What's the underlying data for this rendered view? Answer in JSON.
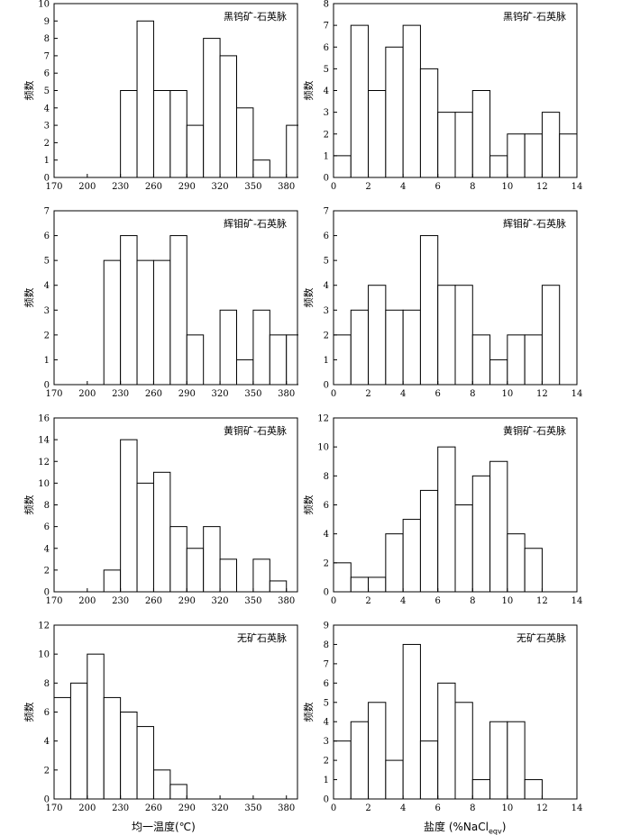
{
  "ylabel": "频数",
  "xlabel_left": "均一温度(℃)",
  "xlabel_right": "盐度 (%NaCl",
  "xlabel_right_sub": "eqv",
  "xlabel_right_close": ")",
  "chart_data": [
    {
      "type": "bar",
      "title": "黑钨矿-石英脉",
      "xlabel": "",
      "ylabel": "频数",
      "xlim": [
        170,
        390
      ],
      "ylim": [
        0,
        10
      ],
      "xticks": [
        170,
        200,
        230,
        260,
        290,
        320,
        350,
        380
      ],
      "yticks": [
        0,
        1,
        2,
        3,
        4,
        5,
        6,
        7,
        8,
        9,
        10
      ],
      "bins": [
        {
          "x0": 230,
          "x1": 245,
          "count": 5
        },
        {
          "x0": 245,
          "x1": 260,
          "count": 9
        },
        {
          "x0": 260,
          "x1": 275,
          "count": 5
        },
        {
          "x0": 275,
          "x1": 290,
          "count": 5
        },
        {
          "x0": 290,
          "x1": 305,
          "count": 3
        },
        {
          "x0": 305,
          "x1": 320,
          "count": 8
        },
        {
          "x0": 320,
          "x1": 335,
          "count": 7
        },
        {
          "x0": 335,
          "x1": 350,
          "count": 4
        },
        {
          "x0": 350,
          "x1": 365,
          "count": 1
        },
        {
          "x0": 365,
          "x1": 380,
          "count": 0
        },
        {
          "x0": 380,
          "x1": 395,
          "count": 3
        }
      ]
    },
    {
      "type": "bar",
      "title": "黑钨矿-石英脉",
      "xlabel": "",
      "ylabel": "频数",
      "xlim": [
        0,
        14
      ],
      "ylim": [
        0,
        8
      ],
      "xticks": [
        0,
        2,
        4,
        6,
        8,
        10,
        12,
        14
      ],
      "yticks": [
        0,
        1,
        2,
        3,
        4,
        5,
        6,
        7,
        8
      ],
      "bins": [
        {
          "x0": 0,
          "x1": 1,
          "count": 1
        },
        {
          "x0": 1,
          "x1": 2,
          "count": 7
        },
        {
          "x0": 2,
          "x1": 3,
          "count": 4
        },
        {
          "x0": 3,
          "x1": 4,
          "count": 6
        },
        {
          "x0": 4,
          "x1": 5,
          "count": 7
        },
        {
          "x0": 5,
          "x1": 6,
          "count": 5
        },
        {
          "x0": 6,
          "x1": 7,
          "count": 3
        },
        {
          "x0": 7,
          "x1": 8,
          "count": 3
        },
        {
          "x0": 8,
          "x1": 9,
          "count": 4
        },
        {
          "x0": 9,
          "x1": 10,
          "count": 1
        },
        {
          "x0": 10,
          "x1": 11,
          "count": 2
        },
        {
          "x0": 11,
          "x1": 12,
          "count": 2
        },
        {
          "x0": 12,
          "x1": 13,
          "count": 3
        },
        {
          "x0": 13,
          "x1": 14,
          "count": 2
        }
      ]
    },
    {
      "type": "bar",
      "title": "辉钼矿-石英脉",
      "xlabel": "",
      "ylabel": "频数",
      "xlim": [
        170,
        390
      ],
      "ylim": [
        0,
        7
      ],
      "xticks": [
        170,
        200,
        230,
        260,
        290,
        320,
        350,
        380
      ],
      "yticks": [
        0,
        1,
        2,
        3,
        4,
        5,
        6,
        7
      ],
      "bins": [
        {
          "x0": 215,
          "x1": 230,
          "count": 5
        },
        {
          "x0": 230,
          "x1": 245,
          "count": 6
        },
        {
          "x0": 245,
          "x1": 260,
          "count": 5
        },
        {
          "x0": 260,
          "x1": 275,
          "count": 5
        },
        {
          "x0": 275,
          "x1": 290,
          "count": 6
        },
        {
          "x0": 290,
          "x1": 305,
          "count": 2
        },
        {
          "x0": 305,
          "x1": 320,
          "count": 0
        },
        {
          "x0": 320,
          "x1": 335,
          "count": 3
        },
        {
          "x0": 335,
          "x1": 350,
          "count": 1
        },
        {
          "x0": 350,
          "x1": 365,
          "count": 3
        },
        {
          "x0": 365,
          "x1": 380,
          "count": 2
        },
        {
          "x0": 380,
          "x1": 395,
          "count": 2
        }
      ]
    },
    {
      "type": "bar",
      "title": "辉钼矿-石英脉",
      "xlabel": "",
      "ylabel": "频数",
      "xlim": [
        0,
        14
      ],
      "ylim": [
        0,
        7
      ],
      "xticks": [
        0,
        2,
        4,
        6,
        8,
        10,
        12,
        14
      ],
      "yticks": [
        0,
        1,
        2,
        3,
        4,
        5,
        6,
        7
      ],
      "bins": [
        {
          "x0": 0,
          "x1": 1,
          "count": 2
        },
        {
          "x0": 1,
          "x1": 2,
          "count": 3
        },
        {
          "x0": 2,
          "x1": 3,
          "count": 4
        },
        {
          "x0": 3,
          "x1": 4,
          "count": 3
        },
        {
          "x0": 4,
          "x1": 5,
          "count": 3
        },
        {
          "x0": 5,
          "x1": 6,
          "count": 6
        },
        {
          "x0": 6,
          "x1": 7,
          "count": 4
        },
        {
          "x0": 7,
          "x1": 8,
          "count": 4
        },
        {
          "x0": 8,
          "x1": 9,
          "count": 2
        },
        {
          "x0": 9,
          "x1": 10,
          "count": 1
        },
        {
          "x0": 10,
          "x1": 11,
          "count": 2
        },
        {
          "x0": 11,
          "x1": 12,
          "count": 2
        },
        {
          "x0": 12,
          "x1": 13,
          "count": 4
        }
      ]
    },
    {
      "type": "bar",
      "title": "黄铜矿-石英脉",
      "xlabel": "",
      "ylabel": "频数",
      "xlim": [
        170,
        390
      ],
      "ylim": [
        0,
        16
      ],
      "xticks": [
        170,
        200,
        230,
        260,
        290,
        320,
        350,
        380
      ],
      "yticks": [
        0,
        2,
        4,
        6,
        8,
        10,
        12,
        14,
        16
      ],
      "bins": [
        {
          "x0": 215,
          "x1": 230,
          "count": 2
        },
        {
          "x0": 230,
          "x1": 245,
          "count": 14
        },
        {
          "x0": 245,
          "x1": 260,
          "count": 10
        },
        {
          "x0": 260,
          "x1": 275,
          "count": 11
        },
        {
          "x0": 275,
          "x1": 290,
          "count": 6
        },
        {
          "x0": 290,
          "x1": 305,
          "count": 4
        },
        {
          "x0": 305,
          "x1": 320,
          "count": 6
        },
        {
          "x0": 320,
          "x1": 335,
          "count": 3
        },
        {
          "x0": 335,
          "x1": 350,
          "count": 0
        },
        {
          "x0": 350,
          "x1": 365,
          "count": 3
        },
        {
          "x0": 365,
          "x1": 380,
          "count": 1
        }
      ]
    },
    {
      "type": "bar",
      "title": "黄铜矿-石英脉",
      "xlabel": "",
      "ylabel": "频数",
      "xlim": [
        0,
        14
      ],
      "ylim": [
        0,
        12
      ],
      "xticks": [
        0,
        2,
        4,
        6,
        8,
        10,
        12,
        14
      ],
      "yticks": [
        0,
        2,
        4,
        6,
        8,
        10,
        12
      ],
      "bins": [
        {
          "x0": 0,
          "x1": 1,
          "count": 2
        },
        {
          "x0": 1,
          "x1": 2,
          "count": 1
        },
        {
          "x0": 2,
          "x1": 3,
          "count": 1
        },
        {
          "x0": 3,
          "x1": 4,
          "count": 4
        },
        {
          "x0": 4,
          "x1": 5,
          "count": 5
        },
        {
          "x0": 5,
          "x1": 6,
          "count": 7
        },
        {
          "x0": 6,
          "x1": 7,
          "count": 10
        },
        {
          "x0": 7,
          "x1": 8,
          "count": 6
        },
        {
          "x0": 8,
          "x1": 9,
          "count": 8
        },
        {
          "x0": 9,
          "x1": 10,
          "count": 9
        },
        {
          "x0": 10,
          "x1": 11,
          "count": 4
        },
        {
          "x0": 11,
          "x1": 12,
          "count": 3
        }
      ]
    },
    {
      "type": "bar",
      "title": "无矿石英脉",
      "xlabel": "均一温度(℃)",
      "ylabel": "频数",
      "xlim": [
        170,
        390
      ],
      "ylim": [
        0,
        12
      ],
      "xticks": [
        170,
        200,
        230,
        260,
        290,
        320,
        350,
        380
      ],
      "yticks": [
        0,
        2,
        4,
        6,
        8,
        10,
        12
      ],
      "bins": [
        {
          "x0": 170,
          "x1": 185,
          "count": 7
        },
        {
          "x0": 185,
          "x1": 200,
          "count": 8
        },
        {
          "x0": 200,
          "x1": 215,
          "count": 10
        },
        {
          "x0": 215,
          "x1": 230,
          "count": 7
        },
        {
          "x0": 230,
          "x1": 245,
          "count": 6
        },
        {
          "x0": 245,
          "x1": 260,
          "count": 5
        },
        {
          "x0": 260,
          "x1": 275,
          "count": 2
        },
        {
          "x0": 275,
          "x1": 290,
          "count": 1
        }
      ]
    },
    {
      "type": "bar",
      "title": "无矿石英脉",
      "xlabel": "盐度 (%NaCleqv)",
      "ylabel": "频数",
      "xlim": [
        0,
        14
      ],
      "ylim": [
        0,
        9
      ],
      "xticks": [
        0,
        2,
        4,
        6,
        8,
        10,
        12,
        14
      ],
      "yticks": [
        0,
        1,
        2,
        3,
        4,
        5,
        6,
        7,
        8,
        9
      ],
      "bins": [
        {
          "x0": 0,
          "x1": 1,
          "count": 3
        },
        {
          "x0": 1,
          "x1": 2,
          "count": 4
        },
        {
          "x0": 2,
          "x1": 3,
          "count": 5
        },
        {
          "x0": 3,
          "x1": 4,
          "count": 2
        },
        {
          "x0": 4,
          "x1": 5,
          "count": 8
        },
        {
          "x0": 5,
          "x1": 6,
          "count": 3
        },
        {
          "x0": 6,
          "x1": 7,
          "count": 6
        },
        {
          "x0": 7,
          "x1": 8,
          "count": 5
        },
        {
          "x0": 8,
          "x1": 9,
          "count": 1
        },
        {
          "x0": 9,
          "x1": 10,
          "count": 4
        },
        {
          "x0": 10,
          "x1": 11,
          "count": 4
        },
        {
          "x0": 11,
          "x1": 12,
          "count": 1
        }
      ]
    }
  ]
}
